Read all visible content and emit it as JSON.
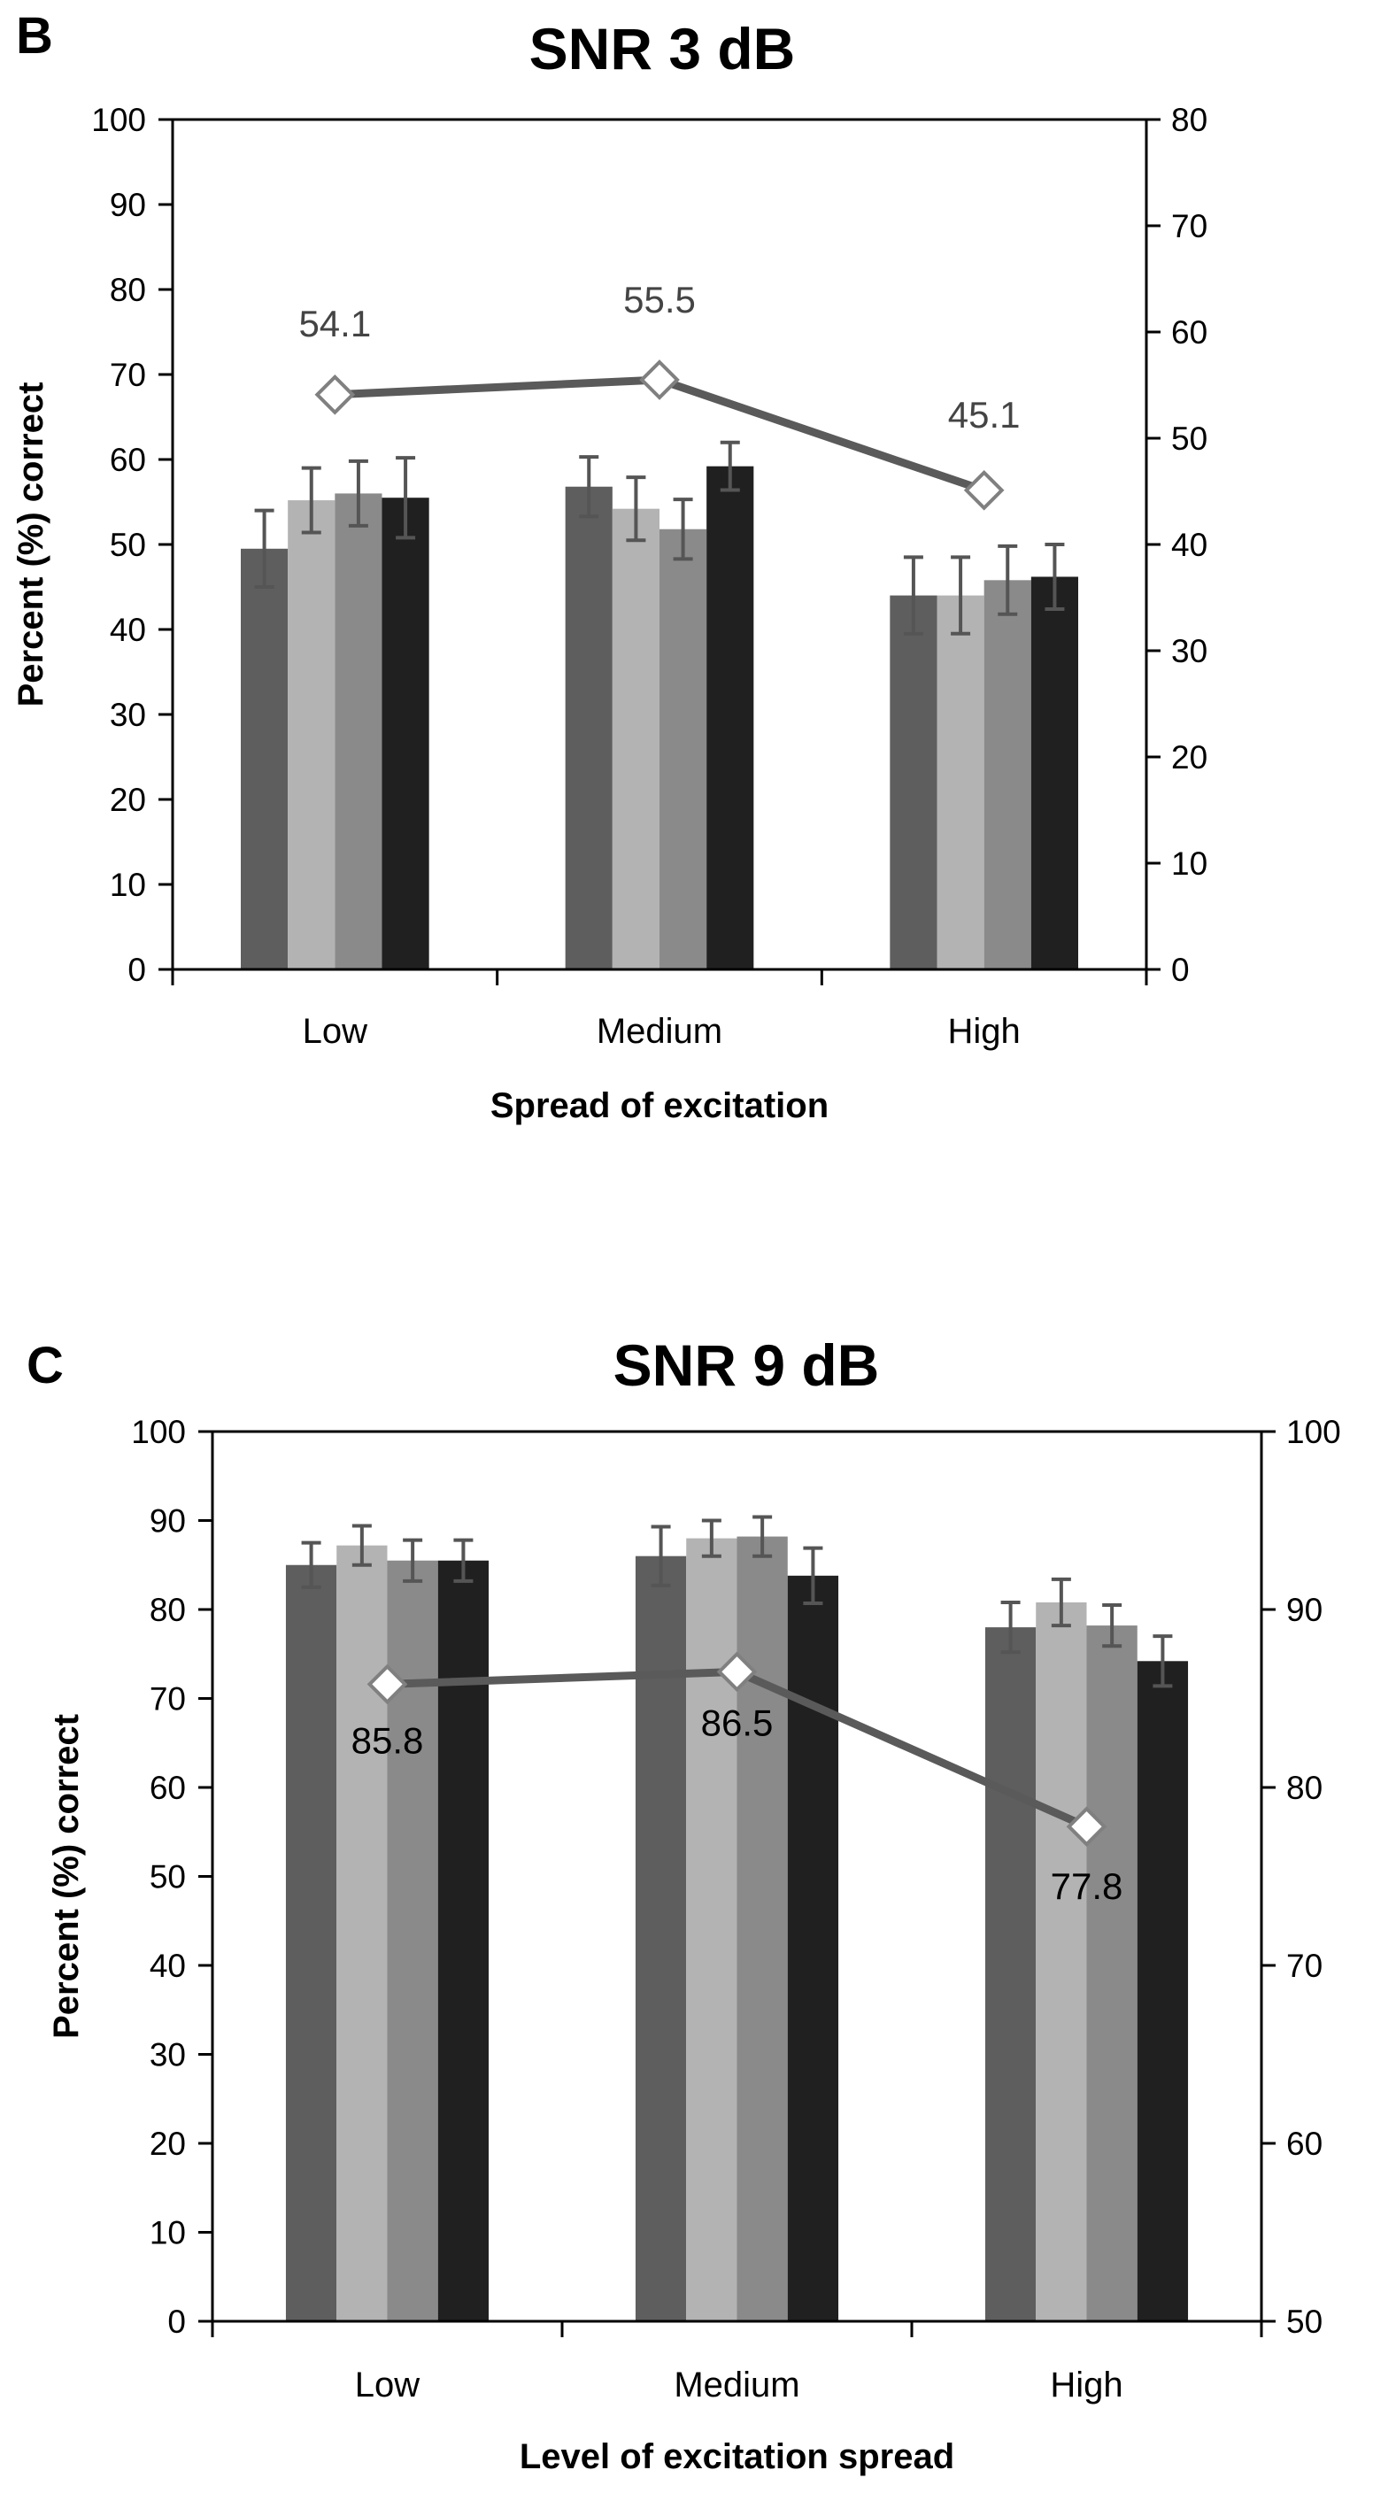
{
  "chart_data": [
    {
      "panel_label": "B",
      "type": "bar",
      "title": "SNR 3 dB",
      "xlabel": "Spread of excitation",
      "ylabel": "Percent (%) correct",
      "categories": [
        "Low",
        "Medium",
        "High"
      ],
      "ylim": [
        0,
        100
      ],
      "yticks": [
        "0",
        "10",
        "20",
        "30",
        "40",
        "50",
        "60",
        "70",
        "80",
        "90",
        "100"
      ],
      "y2lim": [
        0,
        80
      ],
      "y2ticks": [
        "0",
        "10",
        "20",
        "30",
        "40",
        "50",
        "60",
        "70",
        "80"
      ],
      "series": [
        {
          "name": "bar-1",
          "color": "#5e5e5e",
          "values": [
            49.5,
            56.8,
            44.0
          ],
          "errors": [
            4.5,
            3.5,
            4.5
          ]
        },
        {
          "name": "bar-2",
          "color": "#b3b3b3",
          "values": [
            55.2,
            54.2,
            44.0
          ],
          "errors": [
            3.8,
            3.7,
            4.5
          ]
        },
        {
          "name": "bar-3",
          "color": "#8a8a8a",
          "values": [
            56.0,
            51.8,
            45.8
          ],
          "errors": [
            3.8,
            3.5,
            4.0
          ]
        },
        {
          "name": "bar-4",
          "color": "#202020",
          "values": [
            55.5,
            59.2,
            46.2
          ],
          "errors": [
            4.7,
            2.8,
            3.8
          ]
        }
      ],
      "line": {
        "name": "line",
        "axis": "right",
        "color": "#5a5a5a",
        "values": [
          54.1,
          55.5,
          45.1
        ],
        "labels": [
          "54.1",
          "55.5",
          "45.1"
        ]
      }
    },
    {
      "panel_label": "C",
      "type": "bar",
      "title": "SNR 9 dB",
      "xlabel": "Level of excitation spread",
      "ylabel": "Percent (%) correct",
      "categories": [
        "Low",
        "Medium",
        "High"
      ],
      "ylim": [
        0,
        100
      ],
      "yticks": [
        "0",
        "10",
        "20",
        "30",
        "40",
        "50",
        "60",
        "70",
        "80",
        "90",
        "100"
      ],
      "y2lim": [
        50,
        100
      ],
      "y2ticks": [
        "50",
        "60",
        "70",
        "80",
        "90",
        "100"
      ],
      "series": [
        {
          "name": "bar-1",
          "color": "#5e5e5e",
          "values": [
            85.0,
            86.0,
            78.0
          ],
          "errors": [
            2.5,
            3.3,
            2.8
          ]
        },
        {
          "name": "bar-2",
          "color": "#b3b3b3",
          "values": [
            87.2,
            88.0,
            80.8
          ],
          "errors": [
            2.2,
            2.0,
            2.6
          ]
        },
        {
          "name": "bar-3",
          "color": "#8a8a8a",
          "values": [
            85.5,
            88.2,
            78.2
          ],
          "errors": [
            2.3,
            2.2,
            2.3
          ]
        },
        {
          "name": "bar-4",
          "color": "#202020",
          "values": [
            85.5,
            83.8,
            74.2
          ],
          "errors": [
            2.3,
            3.1,
            2.8
          ]
        }
      ],
      "line": {
        "name": "line",
        "axis": "right",
        "color": "#5a5a5a",
        "values": [
          85.8,
          86.5,
          77.8
        ],
        "labels": [
          "85.8",
          "86.5",
          "77.8"
        ]
      }
    }
  ]
}
